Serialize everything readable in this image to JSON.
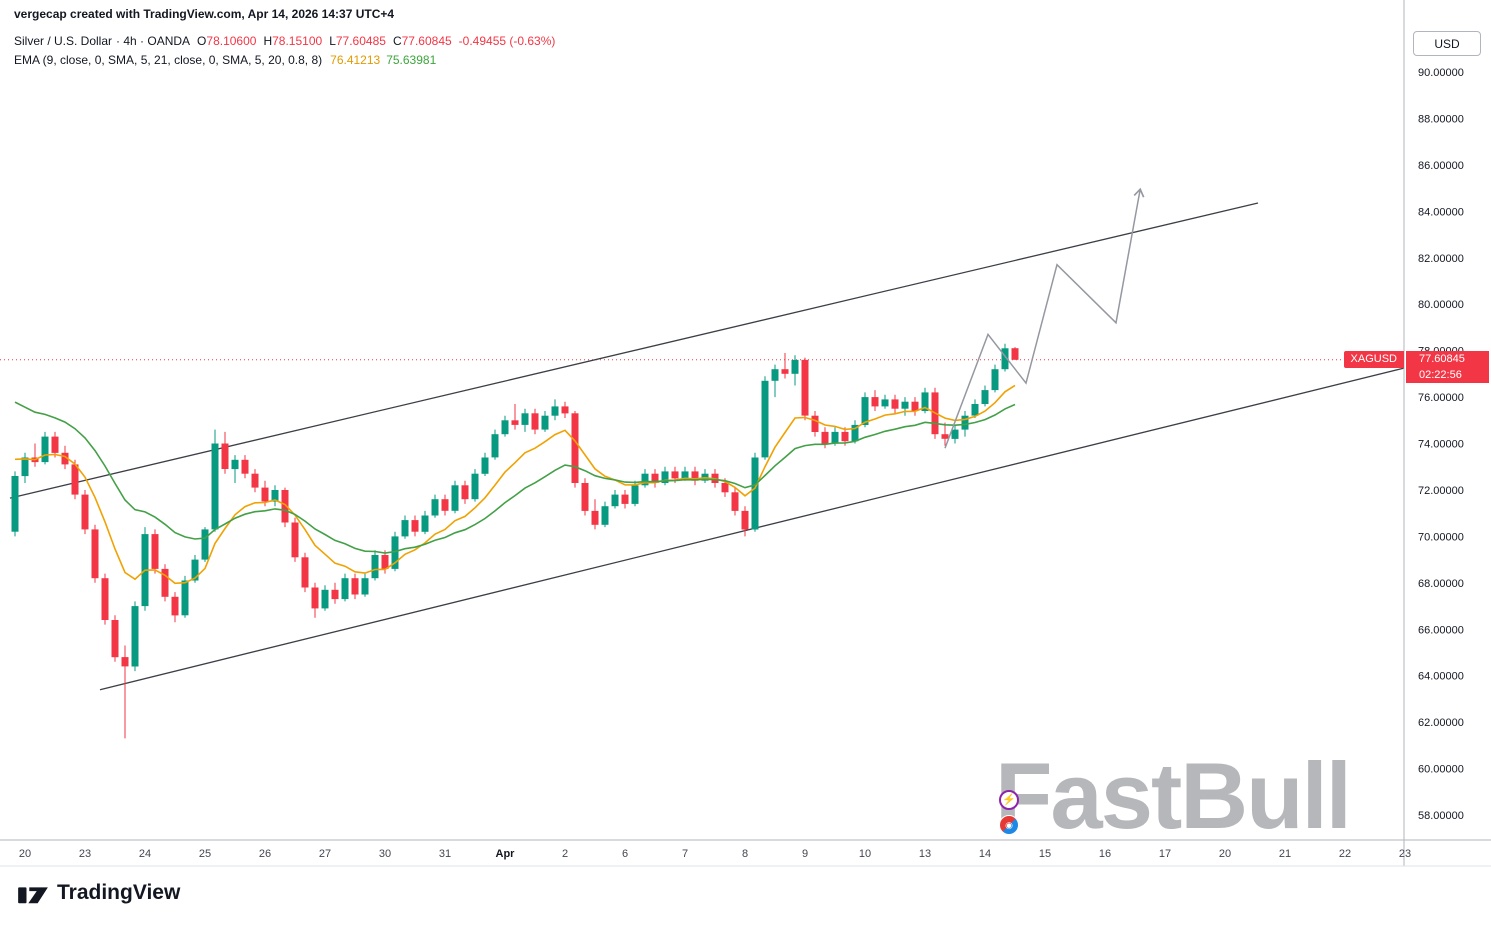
{
  "header": {
    "attribution": "vergecap created with TradingView.com, Apr 14, 2026 14:37 UTC+4",
    "symbol": "Silver / U.S. Dollar",
    "symbol_meta": "· 4h · OANDA",
    "ohlc": {
      "o_label": "O",
      "o": "78.10600",
      "h_label": "H",
      "h": "78.15100",
      "l_label": "L",
      "l": "77.60485",
      "c_label": "C",
      "c": "77.60845",
      "change": "-0.49455 (-0.63%)"
    },
    "indicator": {
      "name": "EMA (9, close, 0, SMA, 5, 21, close, 0, SMA, 5, 20, 0.8, 8)",
      "fast_value": "76.41213",
      "slow_value": "75.63981"
    }
  },
  "axis": {
    "currency": "USD",
    "price_tag": {
      "symbol": "XAGUSD",
      "price": "77.60845",
      "countdown": "02:22:56"
    }
  },
  "watermark": {
    "text": "FastBull",
    "icon1": "⚡",
    "icon2": "◉"
  },
  "footer": {
    "brand": "TradingView"
  },
  "chart_data": {
    "type": "candlestick",
    "symbol": "XAGUSD",
    "interval": "4h",
    "title": "Silver / U.S. Dollar 4h OANDA",
    "last_price": 77.60845,
    "y_axis": {
      "min": 58,
      "max": 90,
      "step": 2,
      "ticks": [
        "90.00000",
        "88.00000",
        "86.00000",
        "84.00000",
        "82.00000",
        "80.00000",
        "78.00000",
        "76.00000",
        "74.00000",
        "72.00000",
        "70.00000",
        "68.00000",
        "66.00000",
        "64.00000",
        "62.00000",
        "60.00000",
        "58.00000"
      ]
    },
    "x_axis": {
      "labels": [
        {
          "label": "20",
          "i": 1
        },
        {
          "label": "23",
          "i": 7
        },
        {
          "label": "24",
          "i": 13
        },
        {
          "label": "25",
          "i": 19
        },
        {
          "label": "26",
          "i": 25
        },
        {
          "label": "27",
          "i": 31
        },
        {
          "label": "30",
          "i": 37
        },
        {
          "label": "31",
          "i": 43
        },
        {
          "label": "Apr",
          "i": 49,
          "bold": true
        },
        {
          "label": "2",
          "i": 55
        },
        {
          "label": "6",
          "i": 61
        },
        {
          "label": "7",
          "i": 67
        },
        {
          "label": "8",
          "i": 73
        },
        {
          "label": "9",
          "i": 79
        },
        {
          "label": "10",
          "i": 85
        },
        {
          "label": "13",
          "i": 91
        },
        {
          "label": "14",
          "i": 97
        },
        {
          "label": "15",
          "i": 103
        },
        {
          "label": "16",
          "i": 109
        },
        {
          "label": "17",
          "i": 115
        },
        {
          "label": "20",
          "i": 121
        },
        {
          "label": "21",
          "i": 127
        },
        {
          "label": "22",
          "i": 133
        },
        {
          "label": "23",
          "i": 139
        }
      ]
    },
    "candles": [
      [
        70.2,
        72.8,
        70.0,
        72.6
      ],
      [
        72.6,
        73.6,
        72.3,
        73.4
      ],
      [
        73.4,
        74.0,
        73.0,
        73.2
      ],
      [
        73.2,
        74.5,
        73.1,
        74.3
      ],
      [
        74.3,
        74.5,
        73.4,
        73.6
      ],
      [
        73.6,
        73.9,
        72.9,
        73.1
      ],
      [
        73.1,
        73.3,
        71.6,
        71.8
      ],
      [
        71.8,
        72.0,
        70.1,
        70.3
      ],
      [
        70.3,
        70.5,
        68.0,
        68.2
      ],
      [
        68.2,
        68.4,
        66.2,
        66.4
      ],
      [
        66.4,
        66.6,
        64.6,
        64.8
      ],
      [
        64.8,
        65.3,
        61.3,
        64.4
      ],
      [
        64.4,
        67.2,
        64.2,
        67.0
      ],
      [
        67.0,
        70.4,
        66.8,
        70.1
      ],
      [
        70.1,
        70.3,
        68.4,
        68.6
      ],
      [
        68.6,
        68.8,
        67.2,
        67.4
      ],
      [
        67.4,
        67.6,
        66.3,
        66.6
      ],
      [
        66.6,
        68.3,
        66.5,
        68.1
      ],
      [
        68.1,
        69.2,
        68.0,
        69.0
      ],
      [
        69.0,
        70.4,
        68.9,
        70.3
      ],
      [
        70.3,
        74.6,
        70.2,
        74.0
      ],
      [
        74.0,
        74.5,
        72.7,
        72.9
      ],
      [
        72.9,
        73.5,
        72.3,
        73.3
      ],
      [
        73.3,
        73.5,
        72.5,
        72.7
      ],
      [
        72.7,
        72.9,
        71.9,
        72.1
      ],
      [
        72.1,
        72.4,
        71.3,
        71.5
      ],
      [
        71.5,
        72.2,
        71.3,
        72.0
      ],
      [
        72.0,
        72.1,
        70.4,
        70.6
      ],
      [
        70.6,
        70.8,
        68.9,
        69.1
      ],
      [
        69.1,
        69.3,
        67.6,
        67.8
      ],
      [
        67.8,
        68.0,
        66.5,
        66.9
      ],
      [
        66.9,
        67.9,
        66.8,
        67.7
      ],
      [
        67.7,
        68.0,
        67.1,
        67.3
      ],
      [
        67.3,
        68.4,
        67.2,
        68.2
      ],
      [
        68.2,
        68.4,
        67.3,
        67.5
      ],
      [
        67.5,
        68.4,
        67.4,
        68.2
      ],
      [
        68.2,
        69.4,
        68.1,
        69.2
      ],
      [
        69.2,
        69.4,
        68.4,
        68.6
      ],
      [
        68.6,
        70.2,
        68.5,
        70.0
      ],
      [
        70.0,
        70.9,
        69.9,
        70.7
      ],
      [
        70.7,
        70.9,
        70.0,
        70.2
      ],
      [
        70.2,
        71.1,
        70.1,
        70.9
      ],
      [
        70.9,
        71.8,
        70.8,
        71.6
      ],
      [
        71.6,
        71.8,
        70.9,
        71.1
      ],
      [
        71.1,
        72.4,
        71.0,
        72.2
      ],
      [
        72.2,
        72.4,
        71.4,
        71.6
      ],
      [
        71.6,
        72.9,
        71.5,
        72.7
      ],
      [
        72.7,
        73.6,
        72.6,
        73.4
      ],
      [
        73.4,
        74.6,
        73.3,
        74.4
      ],
      [
        74.4,
        75.2,
        74.3,
        75.0
      ],
      [
        75.0,
        75.7,
        74.6,
        74.8
      ],
      [
        74.8,
        75.5,
        74.5,
        75.3
      ],
      [
        75.3,
        75.5,
        74.4,
        74.6
      ],
      [
        74.6,
        75.4,
        74.5,
        75.2
      ],
      [
        75.2,
        75.9,
        75.0,
        75.6
      ],
      [
        75.6,
        75.8,
        75.1,
        75.3
      ],
      [
        75.3,
        75.4,
        72.1,
        72.3
      ],
      [
        72.3,
        72.5,
        70.9,
        71.1
      ],
      [
        71.1,
        71.6,
        70.3,
        70.5
      ],
      [
        70.5,
        71.5,
        70.4,
        71.3
      ],
      [
        71.3,
        72.0,
        71.2,
        71.8
      ],
      [
        71.8,
        72.0,
        71.2,
        71.4
      ],
      [
        71.4,
        72.4,
        71.3,
        72.2
      ],
      [
        72.2,
        72.9,
        72.1,
        72.7
      ],
      [
        72.7,
        72.9,
        72.1,
        72.3
      ],
      [
        72.3,
        73.0,
        72.2,
        72.8
      ],
      [
        72.8,
        73.0,
        72.3,
        72.5
      ],
      [
        72.5,
        73.0,
        72.4,
        72.8
      ],
      [
        72.8,
        73.0,
        72.2,
        72.4
      ],
      [
        72.4,
        72.9,
        72.3,
        72.7
      ],
      [
        72.7,
        72.9,
        72.1,
        72.3
      ],
      [
        72.3,
        72.5,
        71.7,
        71.9
      ],
      [
        71.9,
        72.1,
        70.9,
        71.1
      ],
      [
        71.1,
        71.3,
        70.0,
        70.3
      ],
      [
        70.3,
        73.6,
        70.2,
        73.4
      ],
      [
        73.4,
        76.9,
        73.3,
        76.7
      ],
      [
        76.7,
        77.4,
        76.0,
        77.2
      ],
      [
        77.2,
        77.9,
        76.8,
        77.0
      ],
      [
        77.0,
        77.8,
        76.5,
        77.6
      ],
      [
        77.6,
        77.7,
        75.0,
        75.2
      ],
      [
        75.2,
        75.4,
        74.3,
        74.5
      ],
      [
        74.5,
        74.7,
        73.8,
        74.0
      ],
      [
        74.0,
        74.7,
        73.9,
        74.5
      ],
      [
        74.5,
        74.7,
        73.9,
        74.1
      ],
      [
        74.1,
        75.0,
        74.0,
        74.8
      ],
      [
        74.8,
        76.2,
        74.7,
        76.0
      ],
      [
        76.0,
        76.3,
        75.4,
        75.6
      ],
      [
        75.6,
        76.1,
        75.5,
        75.9
      ],
      [
        75.9,
        76.1,
        75.3,
        75.5
      ],
      [
        75.5,
        76.0,
        75.2,
        75.8
      ],
      [
        75.8,
        76.0,
        75.2,
        75.4
      ],
      [
        75.4,
        76.4,
        75.3,
        76.2
      ],
      [
        76.2,
        76.4,
        74.2,
        74.4
      ],
      [
        74.4,
        74.9,
        73.9,
        74.2
      ],
      [
        74.2,
        74.8,
        74.0,
        74.6
      ],
      [
        74.6,
        75.4,
        74.3,
        75.2
      ],
      [
        75.2,
        75.9,
        75.1,
        75.7
      ],
      [
        75.7,
        76.5,
        75.6,
        76.3
      ],
      [
        76.3,
        77.4,
        76.2,
        77.2
      ],
      [
        77.2,
        78.3,
        77.1,
        78.1
      ],
      [
        78.106,
        78.151,
        77.605,
        77.608
      ]
    ],
    "ema_seeds": [
      73.5,
      76.1
    ],
    "indicators": [
      {
        "type": "EMA",
        "period": 9,
        "color": "#F0A202"
      },
      {
        "type": "EMA",
        "period": 21,
        "color": "#43A047"
      }
    ],
    "trend_lines": [
      {
        "name": "channel-upper",
        "from": [
          -0.5,
          71.65
        ],
        "to": [
          124.3,
          84.36
        ]
      },
      {
        "name": "channel-lower",
        "from": [
          8.5,
          63.4
        ],
        "to": [
          138.9,
          77.25
        ]
      }
    ],
    "projection": [
      [
        93,
        73.8
      ],
      [
        97.3,
        78.7
      ],
      [
        101.1,
        76.6
      ],
      [
        104.2,
        81.7
      ],
      [
        110.1,
        79.2
      ],
      [
        112.5,
        84.9
      ]
    ],
    "style": {
      "up": "#089981",
      "down": "#F23645",
      "ema_fast": "#F0A202",
      "ema_slow": "#43A047",
      "trend": "#3C3F46",
      "projection": "#9598A1",
      "last_price_color": "#F23645"
    }
  }
}
